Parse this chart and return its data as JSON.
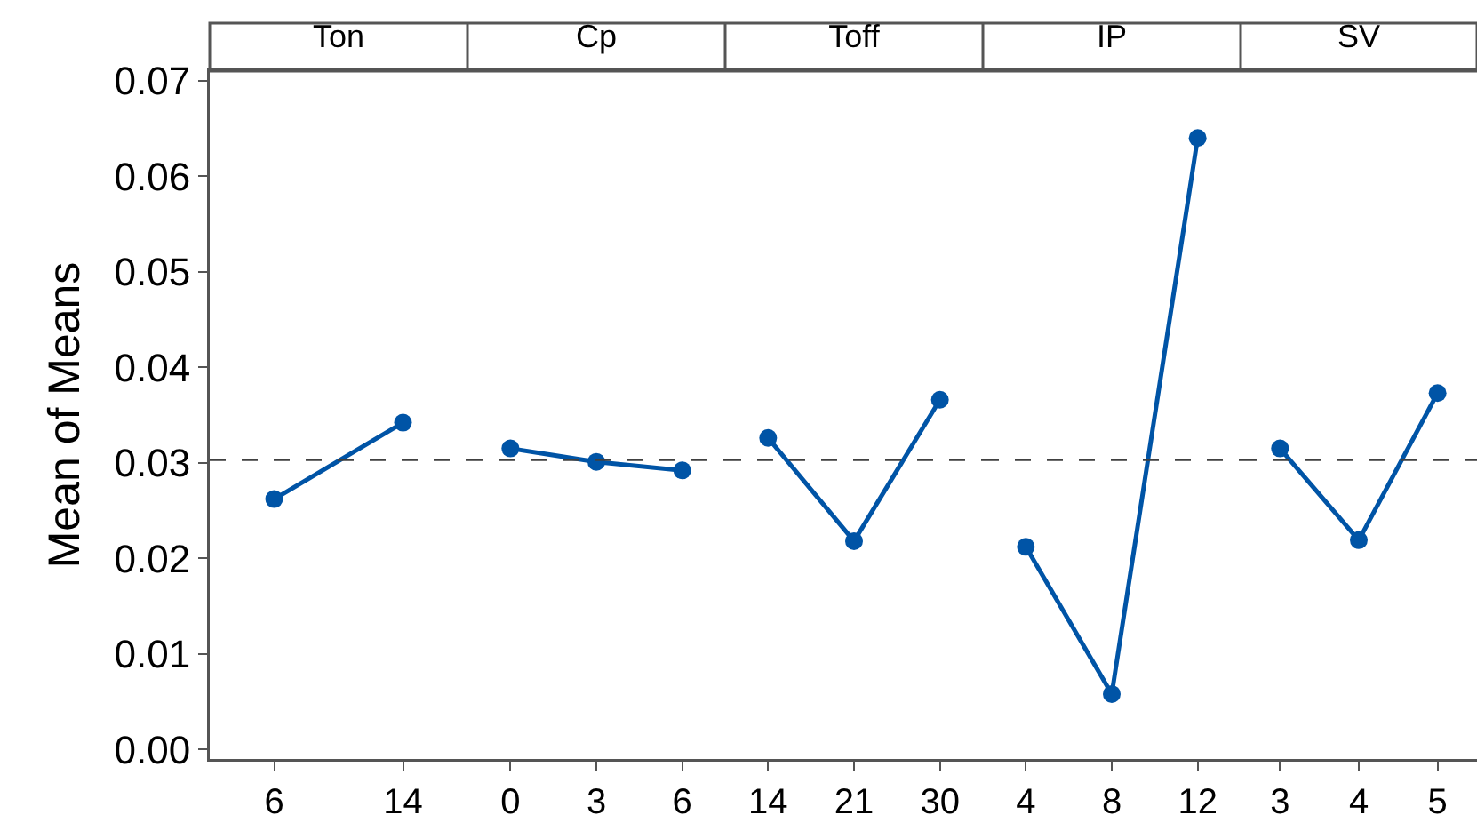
{
  "chart_data": [
    {
      "type": "line",
      "title": "Ton",
      "ylabel": "Mean of Means",
      "categories": [
        "6",
        "14"
      ],
      "series": [
        {
          "color": "#0054a6",
          "values": [
            0.0262,
            0.0342
          ]
        }
      ],
      "ylim": [
        -0.001,
        0.071
      ],
      "yticks": [
        {
          "value": 0,
          "label": "0.00"
        },
        0.01,
        0.02,
        0.03,
        0.04,
        0.05,
        0.06,
        0.07
      ],
      "marker": "circle",
      "line_style": "solid",
      "ref_lines": [
        {
          "axis": "y",
          "value": 0.0303,
          "color": "#404040",
          "line_style": "dashed"
        }
      ]
    },
    {
      "type": "line",
      "title": "Cp",
      "categories": [
        "0",
        "3",
        "6"
      ],
      "series": [
        {
          "color": "#0054a6",
          "values": [
            0.0315,
            0.0301,
            0.0292
          ]
        }
      ],
      "ylim": [
        -0.001,
        0.071
      ],
      "tick_labels": "x",
      "marker": "circle",
      "line_style": "solid",
      "ref_lines": [
        {
          "axis": "y",
          "value": 0.0303,
          "color": "#404040",
          "line_style": "dashed"
        }
      ]
    },
    {
      "type": "line",
      "title": "Toff",
      "categories": [
        "14",
        "21",
        "30"
      ],
      "series": [
        {
          "color": "#0054a6",
          "values": [
            0.0326,
            0.0218,
            0.0366
          ]
        }
      ],
      "ylim": [
        -0.001,
        0.071
      ],
      "tick_labels": "x",
      "marker": "circle",
      "line_style": "solid",
      "ref_lines": [
        {
          "axis": "y",
          "value": 0.0303,
          "color": "#404040",
          "line_style": "dashed"
        }
      ]
    },
    {
      "type": "line",
      "title": "IP",
      "categories": [
        "4",
        "8",
        "12"
      ],
      "series": [
        {
          "color": "#0054a6",
          "values": [
            0.0212,
            0.0058,
            0.064
          ]
        }
      ],
      "ylim": [
        -0.001,
        0.071
      ],
      "tick_labels": "x",
      "marker": "circle",
      "line_style": "solid",
      "ref_lines": [
        {
          "axis": "y",
          "value": 0.0303,
          "color": "#404040",
          "line_style": "dashed"
        }
      ]
    },
    {
      "type": "line",
      "title": "SV",
      "categories": [
        "3",
        "4",
        "5"
      ],
      "series": [
        {
          "color": "#0054a6",
          "values": [
            0.0315,
            0.0219,
            0.0373
          ]
        }
      ],
      "ylim": [
        -0.001,
        0.071
      ],
      "tick_labels": "x",
      "marker": "circle",
      "line_style": "solid",
      "ref_lines": [
        {
          "axis": "y",
          "value": 0.0303,
          "color": "#404040",
          "line_style": "dashed"
        }
      ]
    }
  ]
}
